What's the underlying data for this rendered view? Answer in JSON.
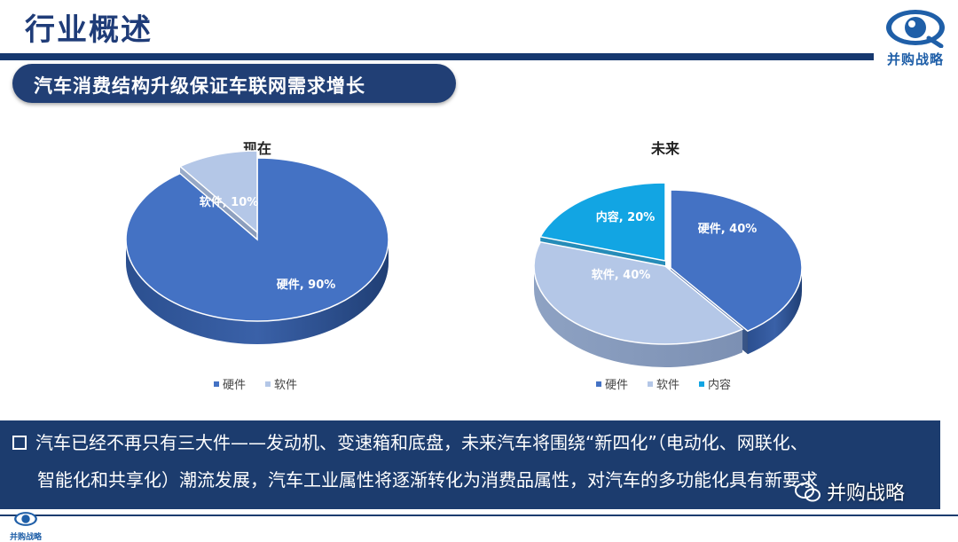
{
  "header": {
    "title": "行业概述",
    "logo_text": "并购战略"
  },
  "subtitle": "汽车消费结构升级保证车联网需求增长",
  "colors": {
    "hardware": "#4472c4",
    "software": "#b4c7e7",
    "content": "#12a5e3",
    "dark_blue": "#1c3c6e"
  },
  "chart_data": [
    {
      "type": "pie",
      "title": "现在",
      "slices": [
        {
          "name": "硬件",
          "value": 90,
          "label": "硬件, 90%"
        },
        {
          "name": "软件",
          "value": 10,
          "label": "软件, 10%"
        }
      ],
      "legend": [
        "硬件",
        "软件"
      ],
      "legend_position": "bottom"
    },
    {
      "type": "pie",
      "title": "未来",
      "slices": [
        {
          "name": "硬件",
          "value": 40,
          "label": "硬件, 40%"
        },
        {
          "name": "软件",
          "value": 40,
          "label": "软件, 40%"
        },
        {
          "name": "内容",
          "value": 20,
          "label": "内容, 20%"
        }
      ],
      "legend": [
        "硬件",
        "软件",
        "内容"
      ],
      "legend_position": "bottom"
    }
  ],
  "bottom": {
    "line1": "汽车已经不再只有三大件——发动机、变速箱和底盘，未来汽车将围绕“新四化”（电动化、网联化、",
    "line2": "智能化和共享化）潮流发展，汽车工业属性将逐渐转化为消费品属性，对汽车的多功能化具有新要求"
  },
  "footer": {
    "logo_text": "并购战略",
    "watermark": "并购战略"
  }
}
